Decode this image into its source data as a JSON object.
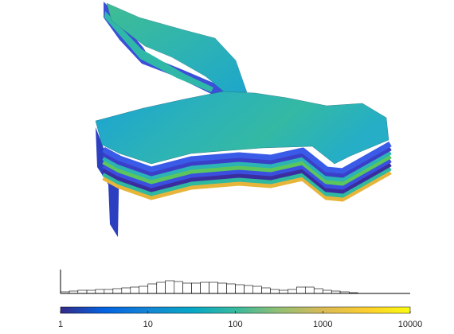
{
  "chart_data": {
    "type": "histogram",
    "bins": [
      1,
      1.26,
      1.58,
      2,
      2.51,
      3.16,
      3.98,
      5.01,
      6.31,
      7.94,
      10,
      12.6,
      15.8,
      20,
      25.1,
      31.6,
      39.8,
      50.1,
      63.1,
      79.4,
      100,
      126,
      158,
      200,
      251,
      316,
      398,
      501,
      631,
      794,
      1000,
      1260,
      1580,
      2000,
      2510,
      3160,
      3980,
      5010,
      6310,
      7940,
      10000
    ],
    "counts": [
      2,
      3,
      4,
      4,
      5,
      5,
      6,
      7,
      8,
      9,
      12,
      14,
      16,
      15,
      13,
      13,
      14,
      14,
      13,
      12,
      11,
      10,
      9,
      7,
      5,
      4,
      5,
      8,
      8,
      6,
      4,
      3,
      2,
      1,
      0,
      0,
      0,
      0,
      0,
      0
    ],
    "xscale": "log",
    "xlim": [
      1,
      10000
    ],
    "xticks": [
      1,
      10,
      100,
      1000,
      10000
    ],
    "ylim": [
      0,
      30
    ],
    "bar_color": "#ffffff",
    "edge_color": "#000000",
    "colormap": [
      "#352a87",
      "#0363e1",
      "#1485d4",
      "#06a7c6",
      "#38b99e",
      "#92bf73",
      "#d9ba56",
      "#fcce2e",
      "#f9fb0e"
    ]
  }
}
